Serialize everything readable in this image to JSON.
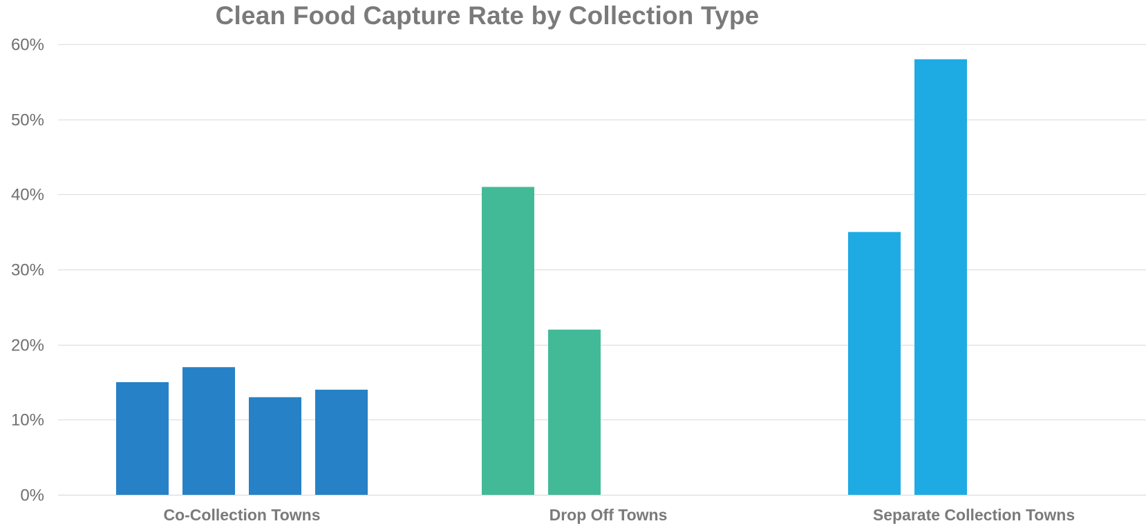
{
  "chart_data": {
    "type": "bar",
    "title": "Clean Food Capture Rate by Collection Type",
    "xlabel": "",
    "ylabel": "",
    "ylim": [
      0,
      60
    ],
    "yticks": [
      "0%",
      "10%",
      "20%",
      "30%",
      "40%",
      "50%",
      "60%"
    ],
    "ytick_values": [
      0,
      10,
      20,
      30,
      40,
      50,
      60
    ],
    "grid": true,
    "legend": "none",
    "groups": [
      {
        "label": "Co-Collection Towns",
        "values": [
          15,
          17,
          13,
          14
        ],
        "color": "#2781c6"
      },
      {
        "label": "Drop Off Towns",
        "values": [
          41,
          22
        ],
        "color": "#43ba97"
      },
      {
        "label": "Separate Collection Towns",
        "values": [
          35,
          58
        ],
        "color": "#1eabe3"
      }
    ]
  },
  "colors": {
    "title": "#7a7a7a",
    "axis_text": "#6f6f6f",
    "category_text": "#7a7a7a",
    "gridline": "#e0e0e0"
  }
}
